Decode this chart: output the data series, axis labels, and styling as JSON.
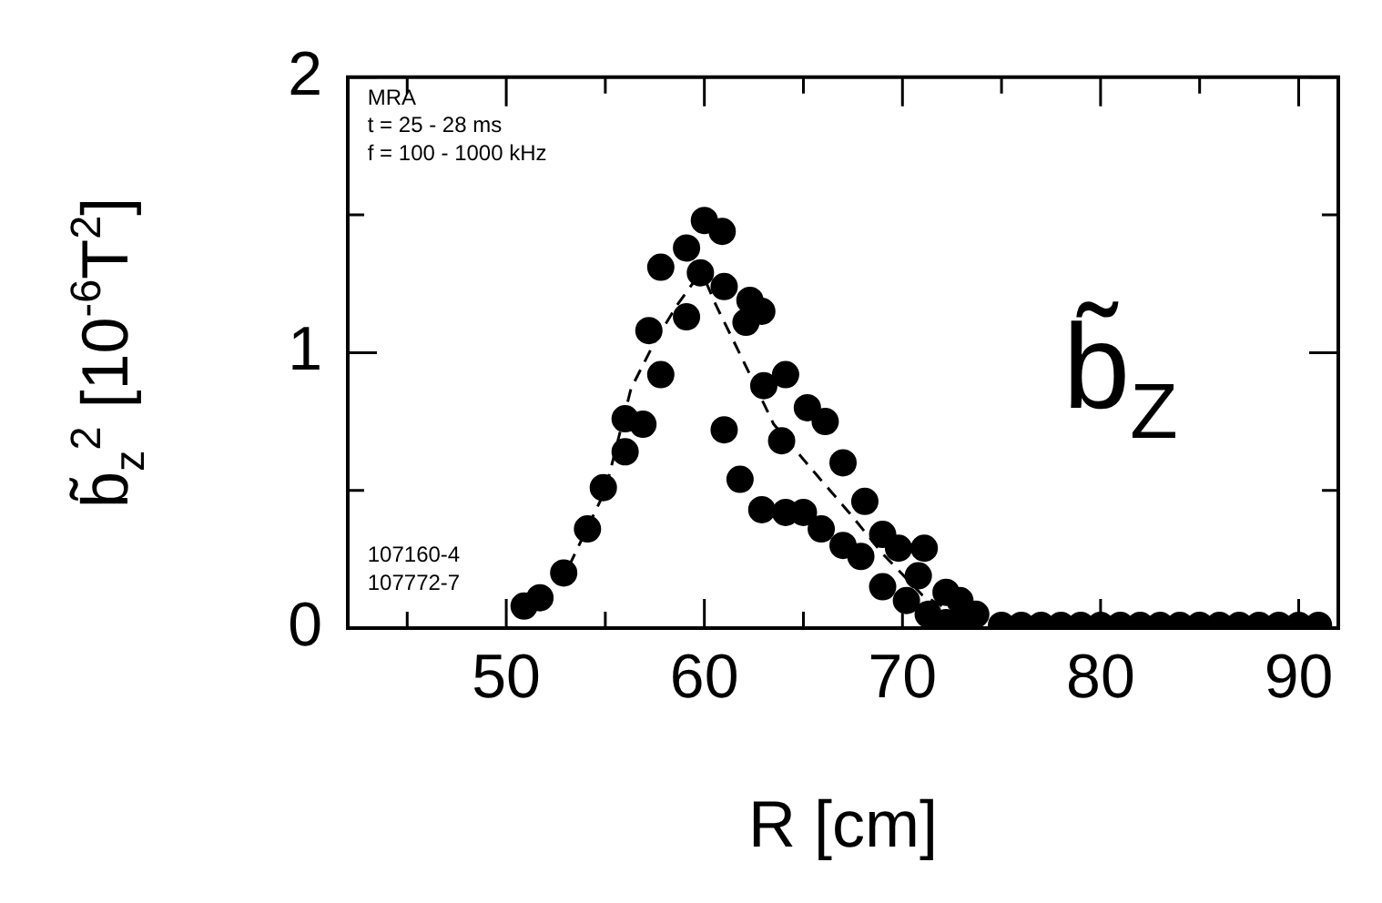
{
  "chart_data": {
    "type": "scatter",
    "xlabel": "R [cm]",
    "ylabel": "b̃$_{z}$$^{2}$ [10$^{-6}$T$^{2}$]",
    "annotations": [
      "MRA",
      "t = 25 - 28 ms",
      "f = 100 - 1000 kHz",
      "107160-4",
      "107772-7",
      "b̃$_{Z}$"
    ],
    "xlim": [
      42,
      92
    ],
    "xticks": [
      {
        "value": 45,
        "label": null
      },
      50,
      {
        "value": 55,
        "label": null
      },
      60,
      {
        "value": 65,
        "label": null
      },
      70,
      {
        "value": 75,
        "label": null
      },
      80,
      {
        "value": 85,
        "label": null
      },
      90
    ],
    "ylim": [
      0,
      2
    ],
    "yticks": [
      0,
      {
        "value": 0.5,
        "label": null
      },
      1,
      {
        "value": 1.5,
        "label": null
      },
      2
    ],
    "grid": false,
    "legend": false,
    "marker": "circle",
    "series": [
      {
        "type": "scatter",
        "color": "#000000",
        "x": [
          50.9,
          51.7,
          52.9,
          54.1,
          54.9,
          56.0,
          56.0,
          56.9,
          57.2,
          57.8,
          57.8,
          59.1,
          59.1,
          60.0,
          60.9,
          59.8,
          61.0,
          62.3,
          62.9,
          62.1,
          61.0,
          61.8,
          63.0,
          64.1,
          62.9,
          64.1,
          65.0,
          65.2,
          66.1,
          63.9,
          65.9,
          67.0,
          67.0,
          67.9,
          68.1,
          69.0,
          69.8,
          71.1,
          69.0,
          70.2,
          70.8,
          71.3,
          72.2,
          72.9,
          72.2,
          73.7,
          73.1,
          75.0,
          76.0,
          77.0,
          78.0,
          79.0,
          80.0,
          81.0,
          82.0,
          83.0,
          84.0,
          85.0,
          86.0,
          87.0,
          88.0,
          89.0,
          90.0,
          91.0
        ],
        "values": [
          0.08,
          0.11,
          0.2,
          0.36,
          0.51,
          0.64,
          0.76,
          0.74,
          1.08,
          0.92,
          1.31,
          1.38,
          1.13,
          1.48,
          1.44,
          1.29,
          1.24,
          1.19,
          1.15,
          1.11,
          0.72,
          0.54,
          0.88,
          0.92,
          0.43,
          0.42,
          0.42,
          0.8,
          0.75,
          0.68,
          0.36,
          0.6,
          0.3,
          0.26,
          0.46,
          0.34,
          0.29,
          0.29,
          0.15,
          0.1,
          0.19,
          0.05,
          0.13,
          0.1,
          0.02,
          0.05,
          0.01,
          0.01,
          0.01,
          0.01,
          0.01,
          0.01,
          0.01,
          0.01,
          0.01,
          0.01,
          0.01,
          0.01,
          0.01,
          0.01,
          0.01,
          0.01,
          0.01,
          0.01
        ]
      },
      {
        "type": "line",
        "color": "#000000",
        "line_style": "dashed",
        "marker": "none",
        "x": [
          51,
          53,
          55,
          56.3,
          57.5,
          58.6,
          59.4,
          60,
          60.6,
          61.9,
          63.5,
          65.5,
          67.3,
          69,
          71,
          73,
          75
        ],
        "values": [
          0.05,
          0.2,
          0.5,
          0.87,
          1.04,
          1.17,
          1.25,
          1.27,
          1.17,
          0.98,
          0.74,
          0.57,
          0.42,
          0.27,
          0.12,
          0.04,
          0.01
        ]
      }
    ]
  }
}
